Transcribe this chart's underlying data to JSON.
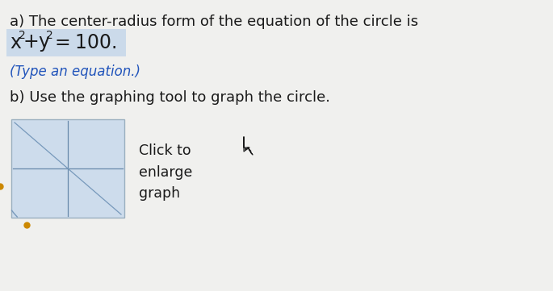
{
  "page_bg": "#f0f0ee",
  "title_a": "a) The center-radius form of the equation of the circle is",
  "equation_bg": "#b8cfe8",
  "hint": "(Type an equation.)",
  "title_b": "b) Use the graphing tool to graph the circle.",
  "click_text": "Click to\nenlarge\ngraph",
  "text_color": "#1a1a1a",
  "hint_color": "#2255bb",
  "mini_graph_bg": "#cddcec",
  "mini_graph_border": "#9aafbf",
  "mini_graph_axis_color": "#6688aa",
  "mini_graph_line_color": "#7799bb",
  "dot_color": "#cc8800",
  "figsize": [
    6.85,
    3.61
  ],
  "dpi": 100
}
